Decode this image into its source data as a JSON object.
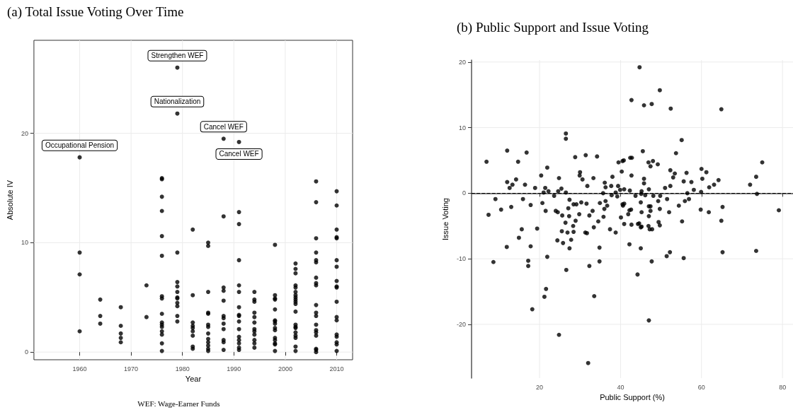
{
  "chart_data": [
    {
      "type": "scatter",
      "title": "(a) Total Issue Voting Over Time",
      "xlabel": "Year",
      "ylabel": "Absolute IV",
      "color": "#000000",
      "marker": "circle",
      "grid": true,
      "xlim": [
        1951.1,
        2013.1
      ],
      "ylim": [
        -0.7,
        28.5
      ],
      "xticks": [
        1960,
        1970,
        1980,
        1990,
        2000,
        2010
      ],
      "yticks": [
        0,
        10,
        20
      ],
      "x": [
        1960,
        1960,
        1960,
        1960,
        1964,
        1964,
        1964,
        1968,
        1968,
        1968,
        1968,
        1968,
        1973,
        1973,
        1976,
        1976,
        1976,
        1976,
        1976,
        1976,
        1976,
        1976,
        1976,
        1976,
        1976,
        1976,
        1976,
        1976,
        1976,
        1976,
        1979,
        1979,
        1979,
        1979,
        1979,
        1979,
        1979,
        1979,
        1979,
        1979,
        1979,
        1979,
        1982,
        1982,
        1982,
        1982,
        1982,
        1982,
        1982,
        1982,
        1982,
        1985,
        1985,
        1985,
        1985,
        1985,
        1985,
        1985,
        1985,
        1985,
        1985,
        1985,
        1985,
        1985,
        1988,
        1988,
        1988,
        1988,
        1988,
        1988,
        1988,
        1988,
        1988,
        1988,
        1988,
        1988,
        1991,
        1991,
        1991,
        1991,
        1991,
        1991,
        1991,
        1991,
        1991,
        1991,
        1991,
        1991,
        1991,
        1991,
        1991,
        1991,
        1994,
        1994,
        1994,
        1994,
        1994,
        1994,
        1994,
        1994,
        1994,
        1994,
        1994,
        1994,
        1998,
        1998,
        1998,
        1998,
        1998,
        1998,
        1998,
        1998,
        1998,
        1998,
        1998,
        1998,
        1998,
        1998,
        1998,
        2002,
        2002,
        2002,
        2002,
        2002,
        2002,
        2002,
        2002,
        2002,
        2002,
        2002,
        2002,
        2002,
        2002,
        2002,
        2002,
        2002,
        2002,
        2002,
        2002,
        2006,
        2006,
        2006,
        2006,
        2006,
        2006,
        2006,
        2006,
        2006,
        2006,
        2006,
        2006,
        2006,
        2006,
        2006,
        2006,
        2006,
        2006,
        2006,
        2010,
        2010,
        2010,
        2010,
        2010,
        2010,
        2010,
        2010,
        2010,
        2010,
        2010,
        2010,
        2010,
        2010,
        2010,
        2010,
        2010,
        2010
      ],
      "values": [
        17.8,
        9.1,
        7.1,
        1.9,
        4.8,
        3.3,
        2.6,
        4.1,
        2.4,
        1.7,
        1.3,
        0.9,
        6.1,
        3.2,
        15.9,
        15.8,
        14.2,
        12.9,
        10.6,
        8.8,
        5.1,
        4.9,
        3.5,
        2.7,
        2.5,
        2.3,
        1.9,
        1.6,
        0.8,
        0.1,
        26.0,
        21.8,
        9.1,
        6.4,
        6.0,
        5.5,
        5.0,
        4.9,
        4.5,
        4.2,
        3.3,
        2.8,
        11.2,
        5.2,
        2.7,
        2.4,
        2.2,
        1.9,
        1.5,
        0.5,
        0.3,
        10.0,
        9.7,
        5.5,
        3.6,
        3.5,
        2.5,
        2.3,
        1.7,
        1.2,
        0.9,
        0.6,
        0.3,
        0.1,
        19.5,
        12.4,
        5.9,
        5.6,
        4.7,
        3.3,
        3.1,
        2.6,
        2.1,
        1.1,
        0.9,
        0.2,
        19.2,
        12.8,
        11.7,
        8.4,
        6.1,
        5.5,
        4.1,
        3.4,
        3.3,
        2.8,
        2.1,
        1.4,
        1.1,
        0.8,
        0.4,
        0.2,
        5.5,
        4.8,
        4.6,
        3.6,
        3.2,
        2.7,
        2.1,
        1.9,
        1.6,
        1.1,
        0.8,
        0.4,
        9.8,
        5.2,
        4.9,
        4.8,
        3.9,
        2.9,
        2.8,
        2.6,
        2.2,
        2.0,
        1.3,
        1.1,
        0.8,
        0.7,
        0.1,
        8.1,
        7.6,
        7.2,
        6.1,
        5.9,
        5.5,
        5.2,
        5.0,
        4.8,
        4.6,
        4.4,
        3.7,
        2.5,
        2.3,
        2.2,
        1.8,
        1.5,
        1.3,
        0.5,
        0.1,
        15.6,
        13.7,
        10.4,
        9.1,
        8.4,
        8.2,
        6.8,
        6.3,
        6.1,
        4.3,
        3.6,
        3.3,
        2.5,
        2.0,
        1.8,
        1.5,
        0.3,
        0.2,
        0.0,
        14.7,
        13.4,
        11.2,
        10.5,
        10.4,
        8.4,
        7.8,
        6.5,
        6.0,
        5.9,
        4.6,
        3.2,
        2.9,
        1.6,
        1.4,
        0.9,
        0.7,
        0.1
      ],
      "annotations": [
        {
          "text": "Strengthen WEF",
          "x": 1979,
          "y": 26.0
        },
        {
          "text": "Nationalization",
          "x": 1979,
          "y": 21.8
        },
        {
          "text": "Occupational Pension",
          "x": 1960,
          "y": 17.8
        },
        {
          "text": "Cancel WEF",
          "x": 1988,
          "y": 19.5
        },
        {
          "text": "Cancel WEF",
          "x": 1991,
          "y": 19.2
        },
        "WEF: Wage-Earner Funds"
      ]
    },
    {
      "type": "scatter",
      "title": "(b) Public Support and Issue Voting",
      "xlabel": "Public Support (%)",
      "ylabel": "Issue Voting",
      "color": "#000000",
      "marker": "circle",
      "grid": true,
      "xlim": [
        3.2,
        82.6
      ],
      "ylim": [
        -28.2,
        20.3
      ],
      "xticks": [
        20,
        40,
        60,
        80
      ],
      "yticks": [
        -20,
        -10,
        0,
        10,
        20
      ],
      "ref_lines": [
        {
          "axis": "y",
          "value": 0,
          "line_style": "dashed",
          "color": "#000000"
        }
      ],
      "x": [
        6.9,
        12.0,
        16.8,
        14.7,
        21.9,
        12.0,
        14.2,
        20.4,
        26.5,
        26.5,
        28.8,
        31.4,
        34.2,
        30.0,
        29.9,
        24.8,
        30.6,
        33.3,
        36.1,
        44.7,
        49.7,
        42.7,
        45.8,
        47.7,
        52.4,
        64.9,
        55.1,
        45.5,
        53.7,
        42.4,
        42.8,
        39.5,
        40.5,
        40.8,
        46.9,
        48.0,
        47.4,
        49.2,
        75.0,
        40.3,
        42.7,
        38.0,
        52.3,
        53.4,
        56.3,
        53.0,
        45.8,
        45.8,
        55.6,
        57.5,
        60.0,
        61.2,
        60.2,
        64.2,
        73.5,
        12.6,
        13.3,
        16.4,
        18.9,
        21.4,
        21.0,
        22.2,
        24.6,
        25.4,
        26.5,
        31.8,
        35.7,
        36.3,
        23.6,
        9.1,
        15.9,
        27.4,
        7.4,
        10.5,
        13.0,
        17.8,
        20.7,
        21.5,
        24.0,
        24.5,
        27.1,
        28.4,
        29.1,
        30.3,
        31.6,
        25.6,
        27.3,
        29.8,
        32.3,
        33.1,
        34.9,
        36.0,
        36.3,
        36.7,
        35.8,
        28.9,
        26.4,
        28.3,
        15.6,
        19.4,
        33.4,
        34.5,
        25.5,
        26.9,
        28.4,
        31.3,
        31.7,
        14.9,
        24.4,
        25.8,
        27.8,
        27.4,
        11.9,
        17.8,
        34.8,
        8.6,
        17.2,
        17.2,
        21.9,
        26.6,
        32.3,
        34.8,
        21.6,
        21.2,
        33.5,
        18.2,
        24.8,
        32.0,
        37.7,
        39.4,
        40.9,
        39.9,
        42.3,
        38.8,
        37.8,
        39.2,
        45.2,
        45.1,
        46.1,
        43.7,
        47.0,
        48.1,
        49.8,
        51.0,
        52.3,
        51.5,
        49.3,
        45.0,
        56.5,
        58.1,
        59.9,
        61.9,
        63.1,
        55.9,
        56.9,
        54.4,
        73.7,
        40.5,
        40.6,
        40.9,
        42.2,
        42.6,
        41.9,
        45.2,
        47.0,
        47.4,
        47.4,
        47.0,
        49.7,
        52.0,
        40.1,
        59.8,
        61.8,
        65.2,
        79.1,
        40.9,
        42.7,
        44.3,
        44.6,
        45.0,
        45.2,
        46.9,
        47.2,
        47.8,
        49.4,
        49.7,
        55.2,
        64.9,
        37.4,
        38.8,
        42.2,
        45.0,
        51.4,
        52.2,
        55.6,
        65.2,
        73.5,
        47.7,
        44.2,
        47.0,
        72.0
      ],
      "values": [
        4.8,
        6.5,
        6.2,
        4.8,
        3.9,
        1.7,
        2.1,
        2.7,
        9.1,
        8.3,
        5.5,
        5.8,
        5.6,
        3.2,
        2.7,
        2.3,
        2.1,
        2.3,
        1.6,
        19.2,
        15.7,
        14.2,
        13.4,
        13.6,
        12.9,
        12.8,
        8.1,
        6.4,
        6.1,
        5.4,
        5.4,
        4.7,
        4.9,
        5.0,
        4.7,
        4.9,
        4.1,
        4.4,
        4.7,
        3.3,
        2.7,
        2.5,
        3.5,
        3.0,
        3.1,
        2.4,
        2.2,
        1.5,
        1.8,
        1.7,
        3.7,
        3.2,
        2.2,
        2.0,
        2.5,
        0.8,
        1.3,
        1.3,
        0.8,
        0.8,
        0.1,
        0.3,
        0.3,
        0.7,
        0.1,
        1.1,
        0.0,
        0.9,
        -0.4,
        -0.9,
        -0.9,
        -1.0,
        -3.3,
        -2.5,
        -2.1,
        -1.8,
        -1.5,
        -2.7,
        -2.7,
        -2.9,
        -2.3,
        -1.7,
        -1.7,
        -1.4,
        -1.6,
        -3.4,
        -3.5,
        -3.2,
        -3.4,
        -2.7,
        -1.5,
        -2.4,
        -1.2,
        -1.9,
        -3.6,
        -4.2,
        -4.5,
        -5.0,
        -5.5,
        -5.4,
        -5.2,
        -4.3,
        -5.8,
        -6.0,
        -5.9,
        -6.0,
        -6.1,
        -6.8,
        -7.2,
        -7.6,
        -7.1,
        -8.4,
        -8.2,
        -8.1,
        -8.3,
        -10.5,
        -10.3,
        -11.1,
        -9.7,
        -11.7,
        -11.1,
        -10.4,
        -14.6,
        -15.8,
        -15.7,
        -17.7,
        -21.6,
        -25.9,
        1.1,
        1.1,
        0.6,
        0.5,
        0.4,
        0.1,
        -0.3,
        -0.5,
        0.3,
        -0.1,
        -0.3,
        -0.4,
        0.6,
        -0.4,
        -0.4,
        0.8,
        1.1,
        -0.9,
        -1.2,
        -1.4,
        0.0,
        0.5,
        0.2,
        0.9,
        1.3,
        -1.2,
        -0.9,
        -1.9,
        -0.1,
        -1.7,
        -1.9,
        -1.6,
        -2.6,
        -2.5,
        -3.2,
        -2.9,
        -2.0,
        -2.0,
        -2.7,
        -3.5,
        -2.4,
        -2.9,
        -3.7,
        -2.5,
        -2.9,
        -2.1,
        -2.6,
        -4.7,
        -4.8,
        -4.7,
        -4.6,
        -5.2,
        -5.1,
        -5.0,
        -5.5,
        -5.5,
        -4.4,
        -4.9,
        -4.3,
        -4.2,
        -5.5,
        -6.0,
        -7.8,
        -8.4,
        -9.6,
        -9.0,
        -9.9,
        -9.0,
        -8.8,
        -10.4,
        -12.4,
        -19.4,
        1.3
      ]
    }
  ]
}
